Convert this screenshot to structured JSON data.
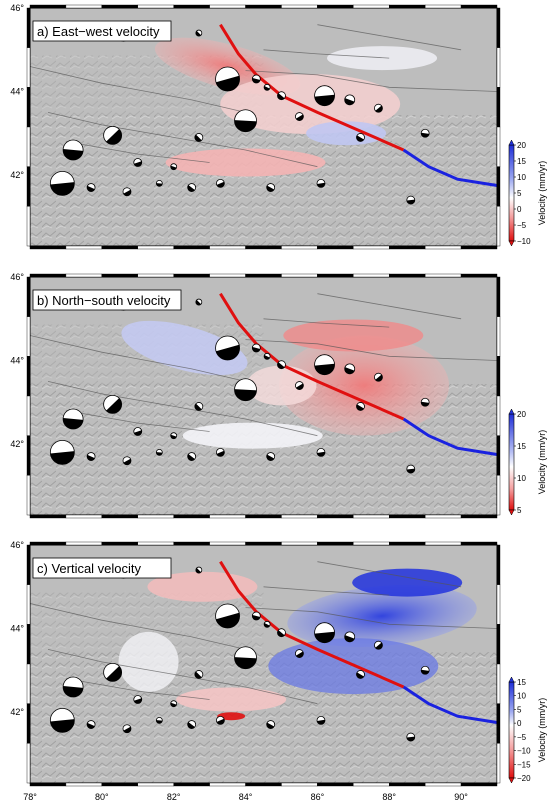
{
  "panels": [
    {
      "label": "a) East−west velocity",
      "colorbar": {
        "title": "Velocity (mm/yr)",
        "ticks": [
          "20",
          "15",
          "10",
          "5",
          "0",
          "−5",
          "−10"
        ],
        "top_color": "#2233dd",
        "bottom_color": "#e01010"
      },
      "y_ticks": [
        "46°",
        "44°",
        "42°"
      ]
    },
    {
      "label": "b) North−south velocity",
      "colorbar": {
        "title": "Velocity (mm/yr)",
        "ticks": [
          "20",
          "15",
          "10",
          "5"
        ],
        "top_color": "#2233dd",
        "bottom_color": "#e01010"
      },
      "y_ticks": [
        "46°",
        "44°",
        "42°"
      ]
    },
    {
      "label": "c) Vertical velocity",
      "colorbar": {
        "title": "Velocity (mm/yr)",
        "ticks": [
          "15",
          "10",
          "5",
          "0",
          "−5",
          "−10",
          "−15",
          "−20"
        ],
        "top_color": "#2233dd",
        "bottom_color": "#e01010"
      },
      "y_ticks": [
        "46°",
        "44°",
        "42°"
      ]
    }
  ],
  "x_ticks": [
    "78°",
    "80°",
    "82°",
    "84°",
    "86°",
    "88°",
    "90°"
  ],
  "colors": {
    "fault_red": "#e01010",
    "fault_blue": "#1a22e0",
    "hillshade": "#b9b9b9",
    "frame": "#000000"
  }
}
